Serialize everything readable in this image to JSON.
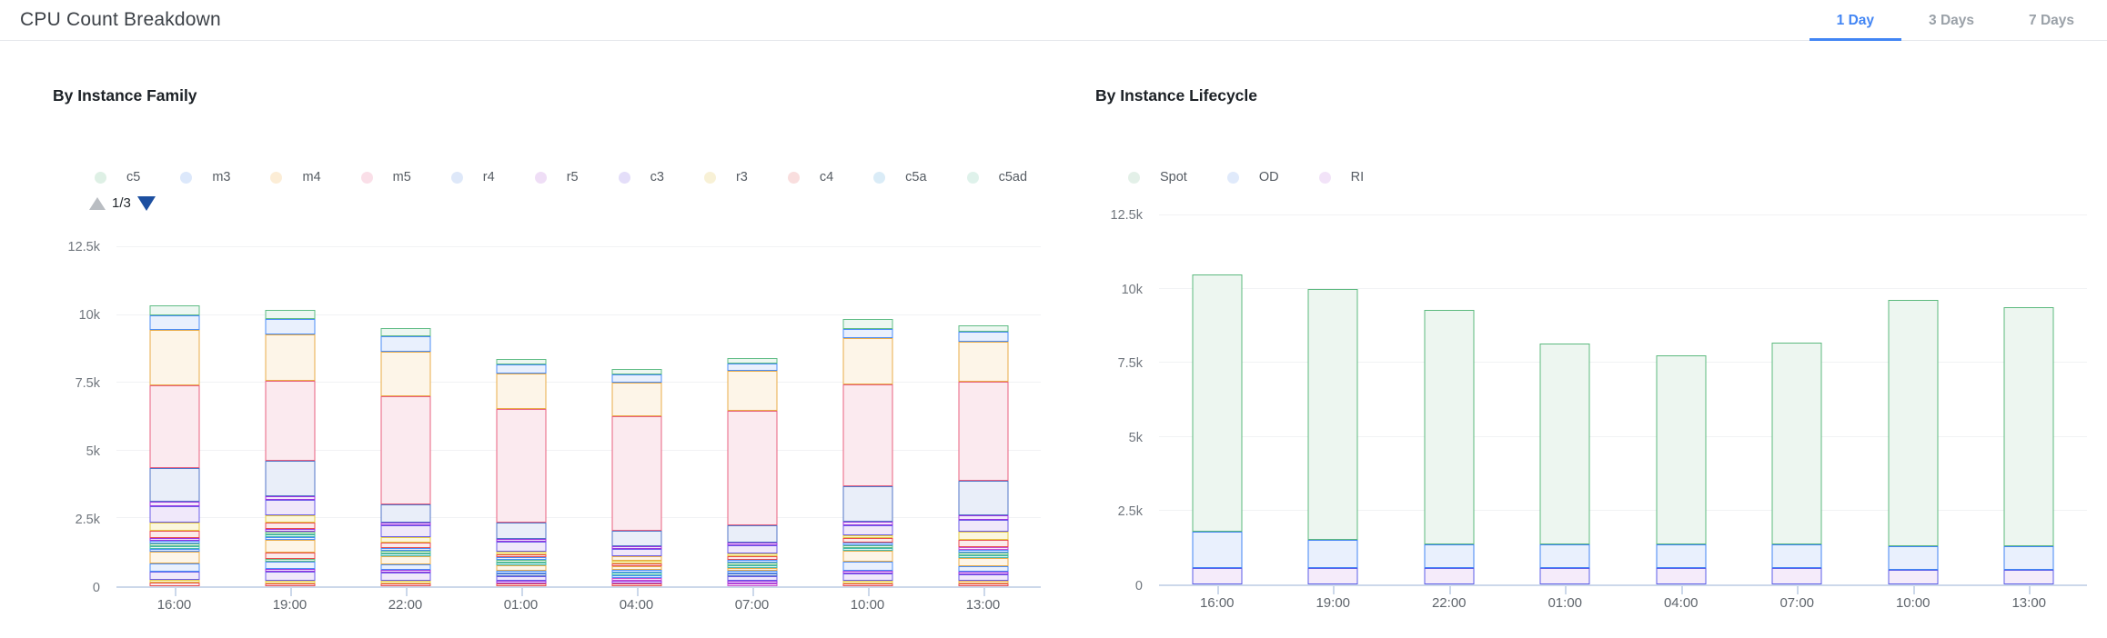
{
  "header": {
    "title": "CPU Count Breakdown",
    "tabs": [
      {
        "label": "1 Day",
        "active": true
      },
      {
        "label": "3 Days",
        "active": false
      },
      {
        "label": "7 Days",
        "active": false
      }
    ],
    "accent_color": "#4285f4"
  },
  "palette": {
    "green": {
      "stroke": "#5FBC85",
      "fill": "#EDF7F1"
    },
    "blue": {
      "stroke": "#4B8DF6",
      "fill": "#E9F0FD"
    },
    "orange": {
      "stroke": "#E9AC49",
      "fill": "#FDF5E8"
    },
    "pink": {
      "stroke": "#E8607F",
      "fill": "#FBEAEF"
    },
    "steel": {
      "stroke": "#5376C8",
      "fill": "#E9EEF9"
    },
    "violet": {
      "stroke": "#9935E0",
      "fill": "#F3E9FB"
    },
    "lavender": {
      "stroke": "#6A5BE8",
      "fill": "#F0E8FA"
    },
    "yellow": {
      "stroke": "#E5CB44",
      "fill": "#FBF7DD"
    },
    "red": {
      "stroke": "#E84C4C",
      "fill": "#FBEAEA"
    },
    "teal": {
      "stroke": "#41B9AE",
      "fill": "#E8F7F5"
    },
    "magenta": {
      "stroke": "#C74ED0",
      "fill": "#F8E9FA"
    },
    "spot": {
      "stroke": "#5CB97E",
      "fill": "#EDF6F0"
    },
    "od": {
      "stroke": "#4285F4",
      "fill": "#E9F0FD"
    },
    "ri": {
      "stroke": "#5B5CE8",
      "fill": "#F5EBFA"
    }
  },
  "chart_data": [
    {
      "type": "bar",
      "stacked": true,
      "title": "By Instance Family",
      "legend": {
        "position": "top",
        "items": [
          {
            "label": "c5",
            "dot": "#DEF0E5"
          },
          {
            "label": "m3",
            "dot": "#DCE8FB"
          },
          {
            "label": "m4",
            "dot": "#FCEDD6"
          },
          {
            "label": "m5",
            "dot": "#FADFE8"
          },
          {
            "label": "r4",
            "dot": "#DEE8F9"
          },
          {
            "label": "r5",
            "dot": "#EFDEF6"
          },
          {
            "label": "c3",
            "dot": "#E4DEF9"
          },
          {
            "label": "r3",
            "dot": "#F8F1D6"
          },
          {
            "label": "c4",
            "dot": "#F9DEDE"
          },
          {
            "label": "c5a",
            "dot": "#DAECF7"
          },
          {
            "label": "c5ad",
            "dot": "#DFF2EB"
          }
        ],
        "pager": {
          "page_label": "1/3",
          "up_icon": "triangle-up",
          "down_icon": "triangle-down"
        }
      },
      "x": [
        "16:00",
        "19:00",
        "22:00",
        "01:00",
        "04:00",
        "07:00",
        "10:00",
        "13:00"
      ],
      "y_ticks": [
        "0",
        "2.5k",
        "5k",
        "7.5k",
        "10k",
        "12.5k"
      ],
      "ylim": [
        0,
        12500
      ],
      "grid": true,
      "totals": [
        10200,
        10000,
        9300,
        8150,
        7800,
        8200,
        9700,
        9450
      ],
      "bars": [
        {
          "x": "16:00",
          "total": 10200,
          "segments": [
            [
              "red",
              120
            ],
            [
              "yellow",
              80
            ],
            [
              "lavender",
              330
            ],
            [
              "blue",
              280
            ],
            [
              "orange",
              450
            ],
            [
              "blue",
              70
            ],
            [
              "teal",
              70
            ],
            [
              "green",
              60
            ],
            [
              "blue",
              70
            ],
            [
              "violet",
              80
            ],
            [
              "red",
              250
            ],
            [
              "yellow",
              300
            ],
            [
              "lavender",
              620
            ],
            [
              "violet",
              160
            ],
            [
              "steel",
              1230
            ],
            [
              "pink",
              3060
            ],
            [
              "orange",
              2050
            ],
            [
              "blue",
              540
            ],
            [
              "green",
              380
            ]
          ]
        },
        {
          "x": "19:00",
          "total": 10000,
          "segments": [
            [
              "red",
              110
            ],
            [
              "yellow",
              70
            ],
            [
              "lavender",
              340
            ],
            [
              "violet",
              90
            ],
            [
              "blue",
              250
            ],
            [
              "green",
              80
            ],
            [
              "red",
              230
            ],
            [
              "orange",
              470
            ],
            [
              "blue",
              60
            ],
            [
              "teal",
              70
            ],
            [
              "green",
              70
            ],
            [
              "violet",
              80
            ],
            [
              "red",
              240
            ],
            [
              "yellow",
              280
            ],
            [
              "lavender",
              560
            ],
            [
              "violet",
              140
            ],
            [
              "steel",
              1320
            ],
            [
              "pink",
              2940
            ],
            [
              "orange",
              1700
            ],
            [
              "blue",
              560
            ],
            [
              "green",
              340
            ]
          ]
        },
        {
          "x": "22:00",
          "total": 9300,
          "segments": [
            [
              "red",
              90
            ],
            [
              "yellow",
              50
            ],
            [
              "lavender",
              300
            ],
            [
              "violet",
              70
            ],
            [
              "blue",
              210
            ],
            [
              "orange",
              310
            ],
            [
              "teal",
              60
            ],
            [
              "green",
              60
            ],
            [
              "blue",
              60
            ],
            [
              "red",
              200
            ],
            [
              "yellow",
              180
            ],
            [
              "lavender",
              450
            ],
            [
              "violet",
              110
            ],
            [
              "steel",
              650
            ],
            [
              "pink",
              4000
            ],
            [
              "orange",
              1650
            ],
            [
              "blue",
              550
            ],
            [
              "green",
              300
            ]
          ]
        },
        {
          "x": "01:00",
          "total": 8150,
          "segments": [
            [
              "red",
              80
            ],
            [
              "violet",
              70
            ],
            [
              "lavender",
              180
            ],
            [
              "steel",
              90
            ],
            [
              "blue",
              100
            ],
            [
              "orange",
              200
            ],
            [
              "teal",
              60
            ],
            [
              "green",
              60
            ],
            [
              "blue",
              60
            ],
            [
              "red",
              90
            ],
            [
              "yellow",
              90
            ],
            [
              "lavender",
              350
            ],
            [
              "violet",
              90
            ],
            [
              "steel",
              600
            ],
            [
              "pink",
              4200
            ],
            [
              "orange",
              1300
            ],
            [
              "blue",
              330
            ],
            [
              "green",
              200
            ]
          ]
        },
        {
          "x": "04:00",
          "total": 7800,
          "segments": [
            [
              "red",
              70
            ],
            [
              "violet",
              80
            ],
            [
              "magenta",
              70
            ],
            [
              "blue",
              80
            ],
            [
              "teal",
              60
            ],
            [
              "blue",
              60
            ],
            [
              "orange",
              120
            ],
            [
              "red",
              70
            ],
            [
              "yellow",
              90
            ],
            [
              "orange",
              180
            ],
            [
              "lavender",
              280
            ],
            [
              "violet",
              100
            ],
            [
              "steel",
              560
            ],
            [
              "pink",
              4230
            ],
            [
              "orange",
              1250
            ],
            [
              "blue",
              300
            ],
            [
              "green",
              200
            ]
          ]
        },
        {
          "x": "07:00",
          "total": 8200,
          "segments": [
            [
              "magenta",
              80
            ],
            [
              "violet",
              90
            ],
            [
              "lavender",
              180
            ],
            [
              "steel",
              80
            ],
            [
              "blue",
              70
            ],
            [
              "orange",
              90
            ],
            [
              "teal",
              60
            ],
            [
              "green",
              60
            ],
            [
              "blue",
              60
            ],
            [
              "red",
              120
            ],
            [
              "yellow",
              100
            ],
            [
              "lavender",
              300
            ],
            [
              "violet",
              100
            ],
            [
              "steel",
              650
            ],
            [
              "pink",
              4200
            ],
            [
              "orange",
              1490
            ],
            [
              "blue",
              270
            ],
            [
              "green",
              200
            ]
          ]
        },
        {
          "x": "10:00",
          "total": 9700,
          "segments": [
            [
              "red",
              90
            ],
            [
              "yellow",
              60
            ],
            [
              "lavender",
              280
            ],
            [
              "violet",
              90
            ],
            [
              "blue",
              320
            ],
            [
              "orange",
              420
            ],
            [
              "teal",
              80
            ],
            [
              "green",
              70
            ],
            [
              "blue",
              70
            ],
            [
              "red",
              150
            ],
            [
              "yellow",
              120
            ],
            [
              "lavender",
              350
            ],
            [
              "violet",
              150
            ],
            [
              "steel",
              1300
            ],
            [
              "pink",
              3750
            ],
            [
              "orange",
              1700
            ],
            [
              "blue",
              350
            ],
            [
              "green",
              350
            ]
          ]
        },
        {
          "x": "13:00",
          "total": 9450,
          "segments": [
            [
              "red",
              80
            ],
            [
              "orange",
              70
            ],
            [
              "lavender",
              250
            ],
            [
              "violet",
              90
            ],
            [
              "blue",
              200
            ],
            [
              "orange",
              300
            ],
            [
              "teal",
              70
            ],
            [
              "green",
              70
            ],
            [
              "blue",
              70
            ],
            [
              "magenta",
              80
            ],
            [
              "red",
              250
            ],
            [
              "yellow",
              300
            ],
            [
              "lavender",
              450
            ],
            [
              "violet",
              150
            ],
            [
              "steel",
              1300
            ],
            [
              "pink",
              3650
            ],
            [
              "orange",
              1470
            ],
            [
              "blue",
              350
            ],
            [
              "green",
              250
            ]
          ]
        }
      ]
    },
    {
      "type": "bar",
      "stacked": true,
      "title": "By Instance Lifecycle",
      "legend": {
        "position": "top",
        "items": [
          {
            "label": "Spot",
            "dot": "#E3F0E8"
          },
          {
            "label": "OD",
            "dot": "#E0EAFB"
          },
          {
            "label": "RI",
            "dot": "#F2E3F8"
          }
        ]
      },
      "x": [
        "16:00",
        "19:00",
        "22:00",
        "01:00",
        "04:00",
        "07:00",
        "10:00",
        "13:00"
      ],
      "y_ticks": [
        "0",
        "2.5k",
        "5k",
        "7.5k",
        "10k",
        "12.5k"
      ],
      "ylim": [
        0,
        12500
      ],
      "grid": true,
      "totals": [
        10500,
        10000,
        9300,
        8150,
        7750,
        8200,
        9650,
        9400
      ],
      "series": [
        {
          "name": "RI",
          "key": "ri",
          "values": [
            550,
            550,
            550,
            550,
            550,
            550,
            500,
            500
          ]
        },
        {
          "name": "OD",
          "key": "od",
          "values": [
            1250,
            950,
            800,
            800,
            800,
            800,
            800,
            800
          ]
        },
        {
          "name": "Spot",
          "key": "spot",
          "values": [
            8700,
            8500,
            7950,
            6800,
            6400,
            6850,
            8350,
            8100
          ]
        }
      ]
    }
  ]
}
